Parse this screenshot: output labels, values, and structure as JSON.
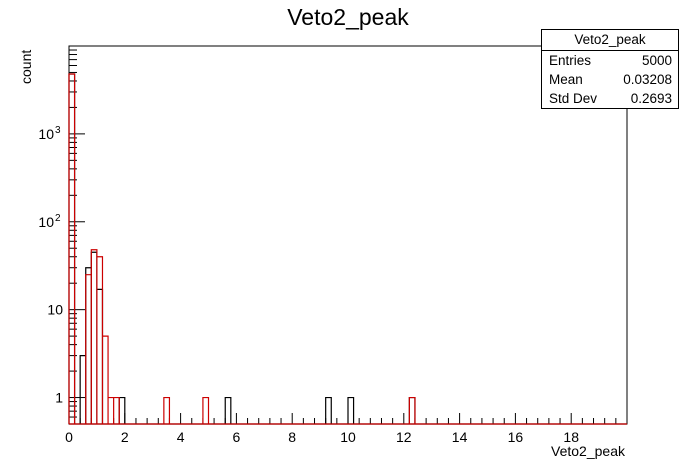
{
  "chart_data": {
    "type": "histogram",
    "title": "Veto2_peak",
    "xlabel": "Veto2_peak",
    "ylabel": "count",
    "xlim": [
      0,
      20
    ],
    "ylim": [
      0.5,
      10000
    ],
    "yscale": "log",
    "grid": false,
    "x_ticks": [
      "0",
      "2",
      "4",
      "6",
      "8",
      "10",
      "12",
      "14",
      "16",
      "18"
    ],
    "y_ticks": [
      {
        "value": 1,
        "label": "1"
      },
      {
        "value": 10,
        "label": "10"
      },
      {
        "value": 100,
        "label": "10",
        "sup": "2"
      },
      {
        "value": 1000,
        "label": "10",
        "sup": "3"
      }
    ],
    "bin_width": 0.2,
    "series": [
      {
        "color": "#000000",
        "bins": [
          {
            "x0": 0.0,
            "count": 4800
          },
          {
            "x0": 0.4,
            "count": 3
          },
          {
            "x0": 0.6,
            "count": 30
          },
          {
            "x0": 0.8,
            "count": 45
          },
          {
            "x0": 1.0,
            "count": 17
          },
          {
            "x0": 1.8,
            "count": 1
          },
          {
            "x0": 5.6,
            "count": 1
          },
          {
            "x0": 9.2,
            "count": 1
          },
          {
            "x0": 10.0,
            "count": 1
          },
          {
            "x0": 12.2,
            "count": 1
          }
        ]
      },
      {
        "color": "#cc0000",
        "bins": [
          {
            "x0": 0.0,
            "count": 4800
          },
          {
            "x0": 0.6,
            "count": 25
          },
          {
            "x0": 0.8,
            "count": 48
          },
          {
            "x0": 1.0,
            "count": 40
          },
          {
            "x0": 1.2,
            "count": 5
          },
          {
            "x0": 1.4,
            "count": 1
          },
          {
            "x0": 1.6,
            "count": 1
          },
          {
            "x0": 3.4,
            "count": 1
          },
          {
            "x0": 4.8,
            "count": 1
          },
          {
            "x0": 12.2,
            "count": 1
          }
        ]
      }
    ],
    "legend": {
      "title": "Veto2_peak",
      "entries": [
        {
          "label": "Entries",
          "value": "5000"
        },
        {
          "label": "Mean",
          "value": "0.03208"
        },
        {
          "label": "Std Dev",
          "value": "0.2693"
        }
      ],
      "placement": "top-right"
    }
  }
}
